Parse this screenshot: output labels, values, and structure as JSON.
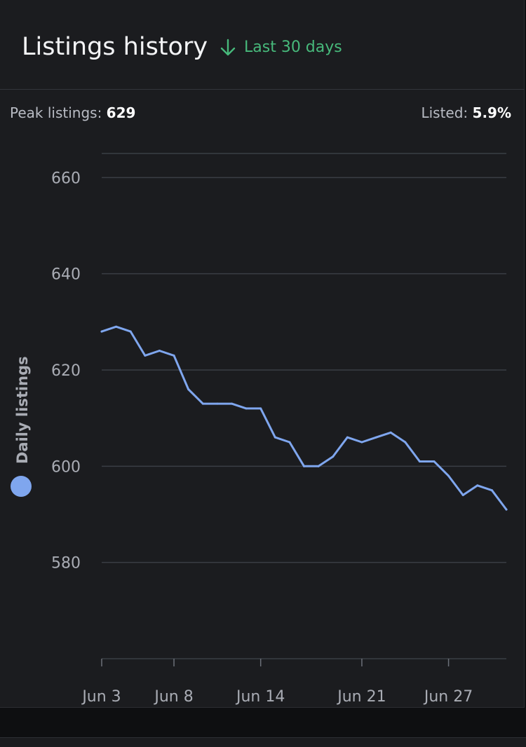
{
  "header": {
    "title": "Listings history",
    "period_label": "Last 30 days",
    "period_icon": "arrow-down-icon"
  },
  "stats": {
    "peak_label": "Peak listings:",
    "peak_value": "629",
    "listed_label": "Listed:",
    "listed_value": "5.9%"
  },
  "colors": {
    "line": "#7fa6ee",
    "accent_green": "#47b97b",
    "grid": "#3b3e45"
  },
  "chart_data": {
    "type": "line",
    "title": "",
    "xlabel": "",
    "ylabel": "Daily listings",
    "ylim": [
      560,
      665
    ],
    "yticks": [
      580,
      600,
      620,
      640,
      660
    ],
    "xlim": [
      "Jun 3",
      "Jul 1"
    ],
    "xticks": [
      "Jun 3",
      "Jun 8",
      "Jun 14",
      "Jun 21",
      "Jun 27"
    ],
    "grid": true,
    "legend": "left-vertical",
    "series": [
      {
        "name": "Daily listings",
        "x": [
          "Jun 3",
          "Jun 4",
          "Jun 5",
          "Jun 6",
          "Jun 7",
          "Jun 8",
          "Jun 9",
          "Jun 10",
          "Jun 11",
          "Jun 12",
          "Jun 13",
          "Jun 14",
          "Jun 15",
          "Jun 16",
          "Jun 17",
          "Jun 18",
          "Jun 19",
          "Jun 20",
          "Jun 21",
          "Jun 22",
          "Jun 23",
          "Jun 24",
          "Jun 25",
          "Jun 26",
          "Jun 27",
          "Jun 28",
          "Jun 29",
          "Jun 30",
          "Jul 1"
        ],
        "values": [
          628,
          629,
          628,
          623,
          624,
          623,
          616,
          613,
          613,
          613,
          612,
          612,
          606,
          605,
          600,
          600,
          602,
          606,
          605,
          606,
          607,
          605,
          601,
          601,
          598,
          594,
          596,
          595,
          591
        ]
      }
    ]
  }
}
